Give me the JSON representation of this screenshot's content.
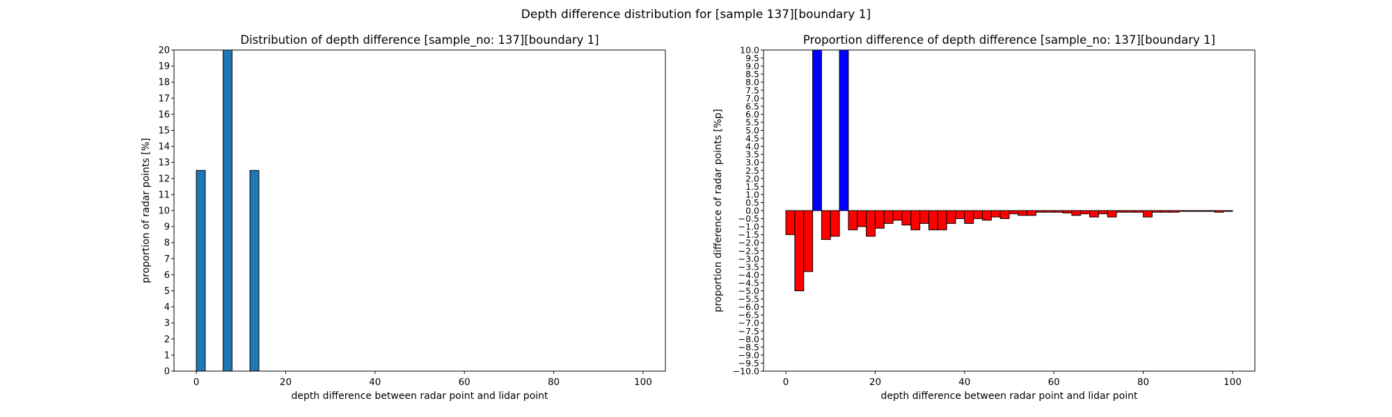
{
  "figure": {
    "suptitle": "Depth difference distribution for [sample 137][boundary 1]"
  },
  "chart_data": [
    {
      "type": "bar",
      "title": "Distribution of depth difference [sample_no: 137][boundary 1]",
      "xlabel": "depth difference between radar point and lidar point",
      "ylabel": "proportion of radar points [%]",
      "xlim": [
        -5,
        105
      ],
      "ylim": [
        0,
        20
      ],
      "xticks": [
        0,
        20,
        40,
        60,
        80,
        100
      ],
      "ytick_step": 1,
      "bar_width": 2,
      "bar_color": "#1f77b4",
      "edge_color": "#000000",
      "x": [
        1,
        7,
        13
      ],
      "values": [
        12.5,
        20,
        12.5
      ]
    },
    {
      "type": "bar",
      "title": "Proportion difference of depth difference [sample_no: 137][boundary 1]",
      "xlabel": "depth difference between radar point and lidar point",
      "ylabel": "proportion difference of radar points [%p]",
      "xlim": [
        -5,
        105
      ],
      "ylim": [
        -10,
        10
      ],
      "xticks": [
        0,
        20,
        40,
        60,
        80,
        100
      ],
      "ytick_step": 0.5,
      "bar_width": 2,
      "positive_color": "#0000ff",
      "negative_color": "#ff0000",
      "edge_color": "#000000",
      "x": [
        1,
        3,
        5,
        7,
        9,
        11,
        13,
        15,
        17,
        19,
        21,
        23,
        25,
        27,
        29,
        31,
        33,
        35,
        37,
        39,
        41,
        43,
        45,
        47,
        49,
        51,
        53,
        55,
        57,
        59,
        61,
        63,
        65,
        67,
        69,
        71,
        73,
        75,
        77,
        79,
        81,
        83,
        85,
        87,
        89,
        91,
        93,
        95,
        97,
        99
      ],
      "values": [
        -1.5,
        -5.0,
        -3.8,
        10.0,
        -1.8,
        -1.6,
        10.0,
        -1.2,
        -1.0,
        -1.6,
        -1.1,
        -0.8,
        -0.6,
        -0.9,
        -1.2,
        -0.8,
        -1.2,
        -1.2,
        -0.8,
        -0.5,
        -0.8,
        -0.5,
        -0.6,
        -0.4,
        -0.5,
        -0.2,
        -0.3,
        -0.3,
        -0.1,
        -0.1,
        -0.1,
        -0.15,
        -0.3,
        -0.2,
        -0.4,
        -0.2,
        -0.4,
        -0.1,
        -0.1,
        -0.1,
        -0.4,
        -0.1,
        -0.1,
        -0.1,
        -0.05,
        -0.05,
        -0.05,
        -0.05,
        -0.1,
        -0.05
      ]
    }
  ]
}
